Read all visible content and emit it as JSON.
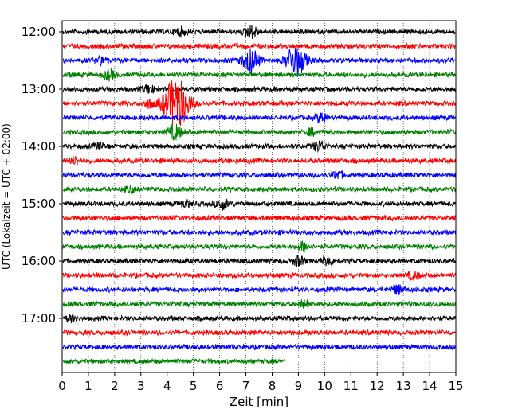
{
  "chart_data": {
    "type": "line",
    "title": "",
    "xlabel": "Zeit  [min]",
    "ylabel": "UTC (Lokalzeit = UTC + 02:00)",
    "xlim": [
      0,
      15
    ],
    "x_ticks": [
      "0",
      "1",
      "2",
      "3",
      "4",
      "5",
      "6",
      "7",
      "8",
      "9",
      "10",
      "11",
      "12",
      "13",
      "14",
      "15"
    ],
    "y_tick_labels": [
      {
        "trace": 0,
        "label": "12:00"
      },
      {
        "trace": 4,
        "label": "13:00"
      },
      {
        "trace": 8,
        "label": "14:00"
      },
      {
        "trace": 12,
        "label": "15:00"
      },
      {
        "trace": 16,
        "label": "16:00"
      },
      {
        "trace": 20,
        "label": "17:00"
      }
    ],
    "grid": "vertical dotted lines at each minute",
    "colors": [
      "#000000",
      "#ff0000",
      "#0000ff",
      "#008000"
    ],
    "traces": [
      {
        "start": "12:00",
        "color": "#000000",
        "end_min": 15,
        "events": [
          {
            "t": 7.2,
            "amp": 0.8
          },
          {
            "t": 4.5,
            "amp": 0.5
          }
        ]
      },
      {
        "start": "12:15",
        "color": "#ff0000",
        "end_min": 15,
        "events": []
      },
      {
        "start": "12:30",
        "color": "#0000ff",
        "end_min": 15,
        "events": [
          {
            "t": 7.2,
            "amp": 1.6
          },
          {
            "t": 8.9,
            "amp": 2.2
          },
          {
            "t": 1.5,
            "amp": 0.5
          }
        ]
      },
      {
        "start": "12:45",
        "color": "#008000",
        "end_min": 15,
        "events": [
          {
            "t": 1.8,
            "amp": 0.6
          }
        ]
      },
      {
        "start": "13:00",
        "color": "#000000",
        "end_min": 15,
        "events": [
          {
            "t": 3.3,
            "amp": 0.5
          }
        ]
      },
      {
        "start": "13:15",
        "color": "#ff0000",
        "end_min": 15,
        "events": [
          {
            "t": 4.35,
            "amp": 3.5
          },
          {
            "t": 3.3,
            "amp": 0.5
          }
        ]
      },
      {
        "start": "13:30",
        "color": "#0000ff",
        "end_min": 15,
        "events": [
          {
            "t": 9.9,
            "amp": 0.6
          }
        ]
      },
      {
        "start": "13:45",
        "color": "#008000",
        "end_min": 15,
        "events": [
          {
            "t": 4.3,
            "amp": 1.0
          },
          {
            "t": 9.5,
            "amp": 0.4
          }
        ]
      },
      {
        "start": "14:00",
        "color": "#000000",
        "end_min": 15,
        "events": [
          {
            "t": 9.8,
            "amp": 0.7
          },
          {
            "t": 1.4,
            "amp": 0.4
          }
        ]
      },
      {
        "start": "14:15",
        "color": "#ff0000",
        "end_min": 15,
        "events": [
          {
            "t": 0.5,
            "amp": 0.5
          }
        ]
      },
      {
        "start": "14:30",
        "color": "#0000ff",
        "end_min": 15,
        "events": [
          {
            "t": 10.5,
            "amp": 0.5
          }
        ]
      },
      {
        "start": "14:45",
        "color": "#008000",
        "end_min": 15,
        "events": [
          {
            "t": 2.6,
            "amp": 0.4
          }
        ]
      },
      {
        "start": "15:00",
        "color": "#000000",
        "end_min": 15,
        "events": [
          {
            "t": 6.1,
            "amp": 0.7
          },
          {
            "t": 4.7,
            "amp": 0.4
          }
        ]
      },
      {
        "start": "15:15",
        "color": "#ff0000",
        "end_min": 15,
        "events": []
      },
      {
        "start": "15:30",
        "color": "#0000ff",
        "end_min": 15,
        "events": []
      },
      {
        "start": "15:45",
        "color": "#008000",
        "end_min": 15,
        "events": [
          {
            "t": 9.2,
            "amp": 0.6
          }
        ]
      },
      {
        "start": "16:00",
        "color": "#000000",
        "end_min": 15,
        "events": [
          {
            "t": 9.0,
            "amp": 0.6
          },
          {
            "t": 10.1,
            "amp": 0.6
          }
        ]
      },
      {
        "start": "16:15",
        "color": "#ff0000",
        "end_min": 15,
        "events": [
          {
            "t": 13.4,
            "amp": 0.5
          }
        ]
      },
      {
        "start": "16:30",
        "color": "#0000ff",
        "end_min": 15,
        "events": [
          {
            "t": 12.8,
            "amp": 0.6
          }
        ]
      },
      {
        "start": "16:45",
        "color": "#008000",
        "end_min": 15,
        "events": [
          {
            "t": 9.2,
            "amp": 0.4
          }
        ]
      },
      {
        "start": "17:00",
        "color": "#000000",
        "end_min": 15,
        "events": [
          {
            "t": 0.4,
            "amp": 0.4
          }
        ]
      },
      {
        "start": "17:15",
        "color": "#ff0000",
        "end_min": 15,
        "events": []
      },
      {
        "start": "17:30",
        "color": "#0000ff",
        "end_min": 15,
        "events": []
      },
      {
        "start": "17:45",
        "color": "#008000",
        "end_min": 8.5,
        "events": []
      }
    ]
  }
}
